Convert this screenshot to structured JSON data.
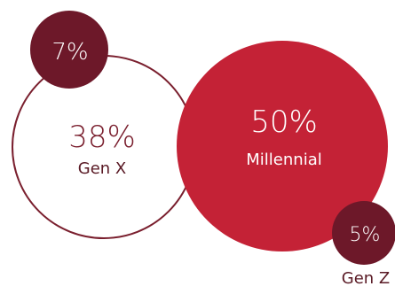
{
  "chart_data": {
    "type": "bubble",
    "title": "",
    "unit": "%",
    "series": [
      {
        "name": "Gen X",
        "value": 38,
        "value_label": "38%",
        "style": "outline",
        "color": "#7a1f2e"
      },
      {
        "name": "Millennial",
        "value": 50,
        "value_label": "50%",
        "style": "filled",
        "color": "#c42236",
        "text_color": "#ffffff"
      },
      {
        "name": "",
        "value": 7,
        "value_label": "7%",
        "style": "filled",
        "color": "#6d1829",
        "text_color": "#ffffff"
      },
      {
        "name": "Gen Z",
        "value": 5,
        "value_label": "5%",
        "style": "filled",
        "color": "#6d1829",
        "text_color": "#ffffff"
      }
    ],
    "colors": {
      "outline_stroke": "#7a1f2e",
      "value_text_dark": "#7a1f2e",
      "label_text_dark": "#5a1a25",
      "background": "#ffffff"
    }
  }
}
